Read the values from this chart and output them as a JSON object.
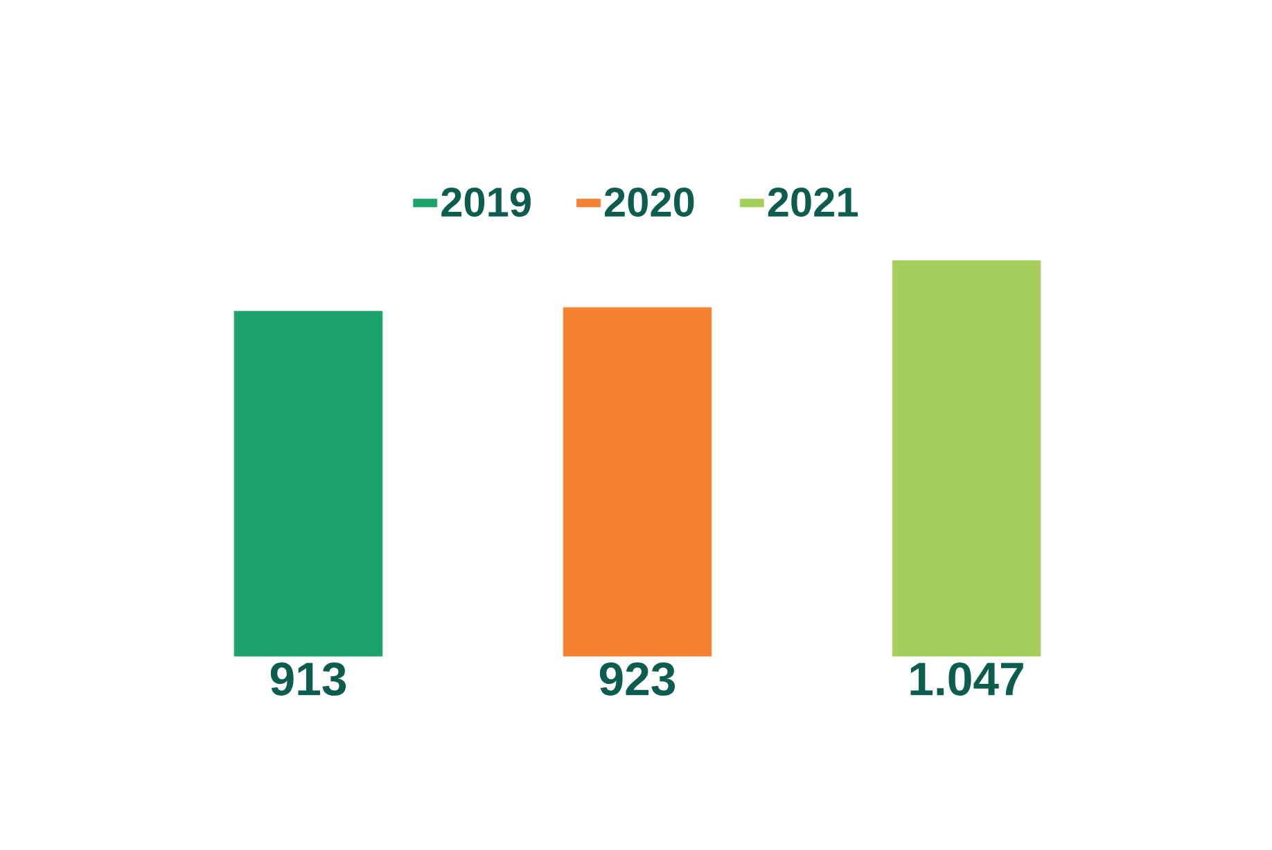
{
  "chart_data": {
    "type": "bar",
    "categories": [
      null,
      null,
      null
    ],
    "legend": "top",
    "stacked": true,
    "series": [
      {
        "name": "2019",
        "color": "#1ba36a",
        "values": [
          913,
          null,
          null
        ],
        "value_labels": [
          "913",
          null,
          null
        ]
      },
      {
        "name": "2020",
        "color": "#f58233",
        "values": [
          null,
          923,
          null
        ],
        "value_labels": [
          null,
          "923",
          null
        ]
      },
      {
        "name": "2021",
        "color": "#a5cf5b",
        "values": [
          null,
          null,
          1047
        ],
        "value_labels": [
          null,
          null,
          "1.047"
        ]
      }
    ]
  }
}
